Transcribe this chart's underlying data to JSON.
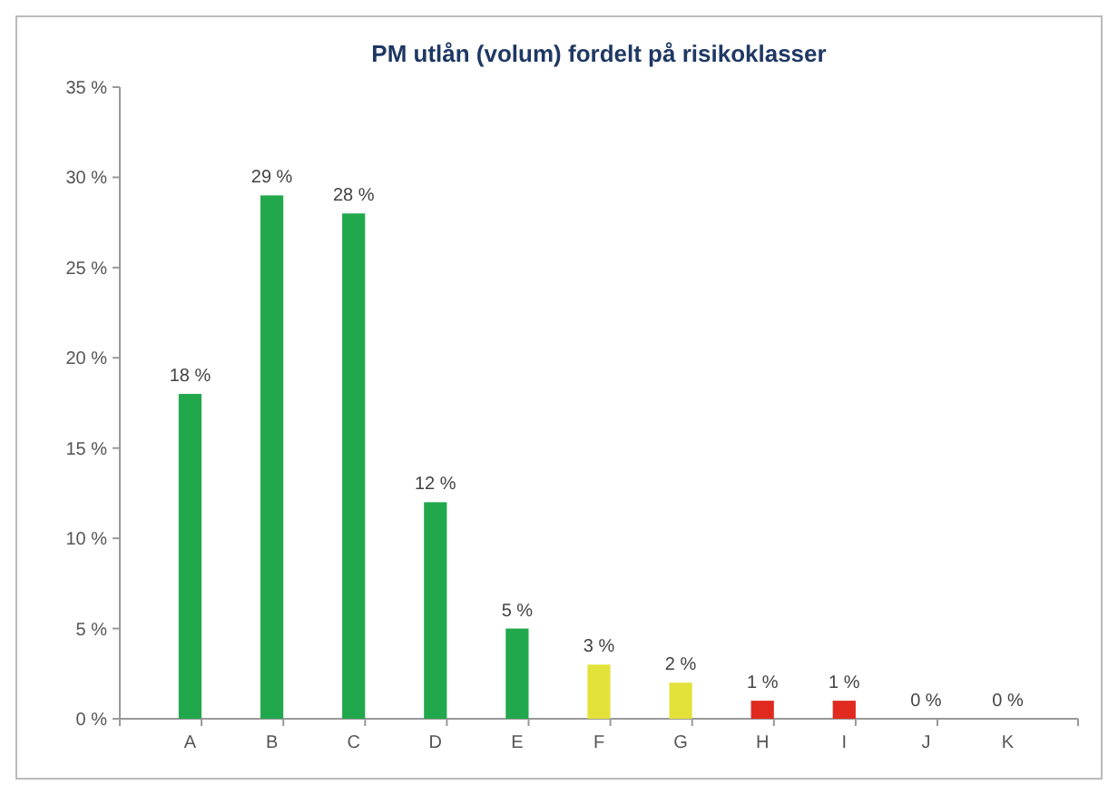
{
  "chart_data": {
    "type": "bar",
    "title": "PM utlån (volum) fordelt på risikoklasser",
    "categories": [
      "A",
      "B",
      "C",
      "D",
      "E",
      "F",
      "G",
      "H",
      "I",
      "J",
      "K"
    ],
    "values": [
      18,
      29,
      28,
      12,
      5,
      3,
      2,
      1,
      1,
      0,
      0
    ],
    "colors": [
      "#22a84c",
      "#22a84c",
      "#22a84c",
      "#22a84c",
      "#22a84c",
      "#e3e23a",
      "#e3e23a",
      "#e02a20",
      "#e02a20",
      "#e02a20",
      "#e02a20"
    ],
    "value_labels": [
      "18 %",
      "29 %",
      "28 %",
      "12 %",
      "5 %",
      "3 %",
      "2 %",
      "1 %",
      "1 %",
      "0 %",
      "0 %"
    ],
    "ylim": [
      0,
      35
    ],
    "yticks": [
      {
        "value": 0,
        "label": "0 %"
      },
      {
        "value": 5,
        "label": "5 %"
      },
      {
        "value": 10,
        "label": "10 %"
      },
      {
        "value": 15,
        "label": "15 %"
      },
      {
        "value": 20,
        "label": "20 %"
      },
      {
        "value": 25,
        "label": "25 %"
      },
      {
        "value": 30,
        "label": "30 %"
      },
      {
        "value": 35,
        "label": "35 %"
      }
    ],
    "grid": false
  }
}
